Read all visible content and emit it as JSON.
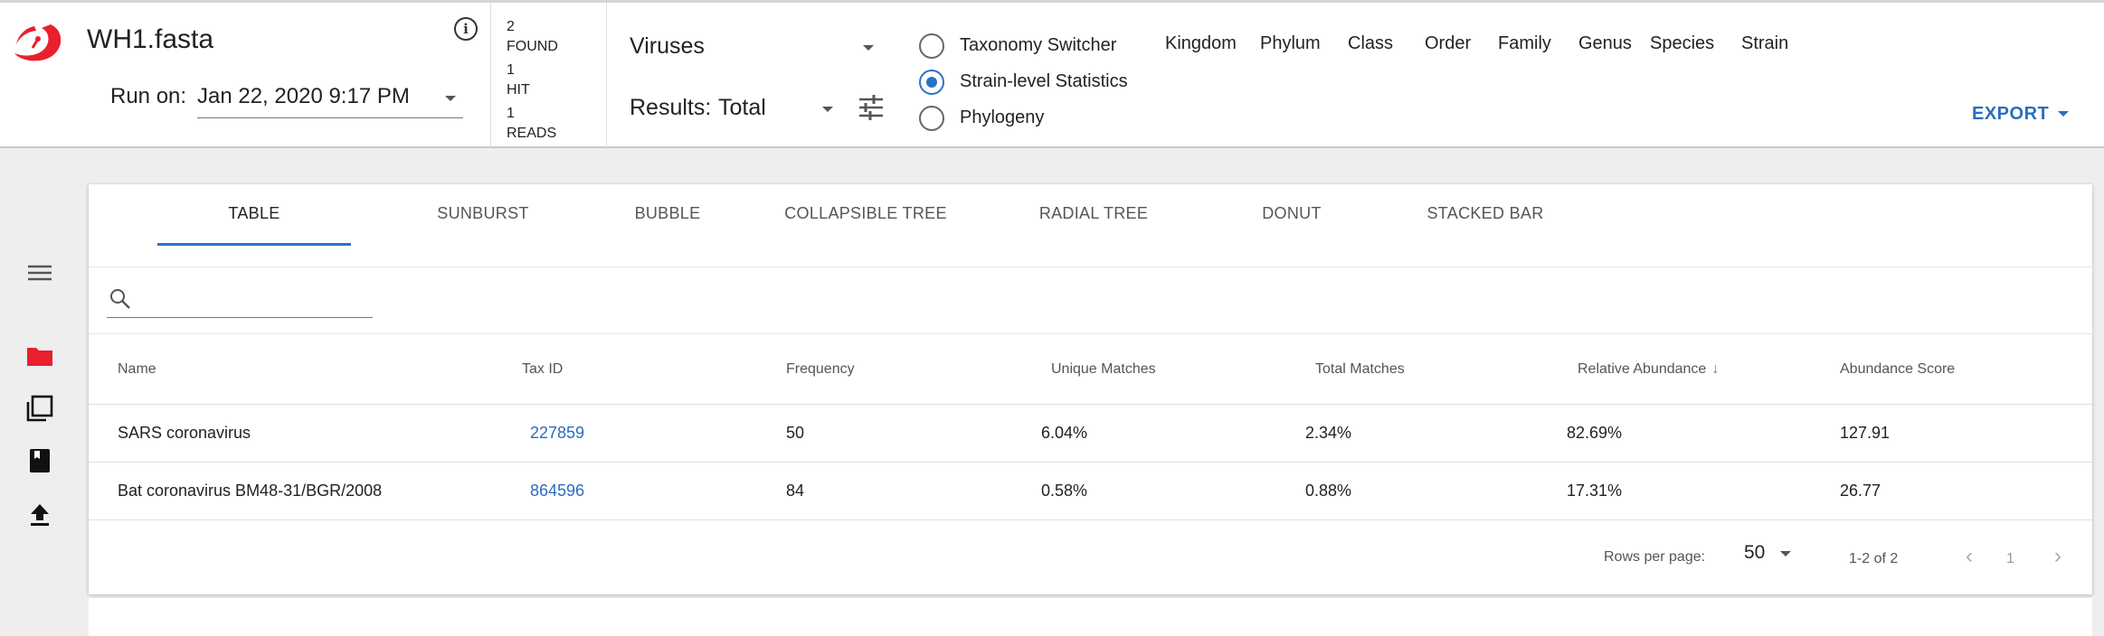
{
  "header": {
    "file_title": "WH1.fasta",
    "run_on_label": "Run on:",
    "run_on_value": "Jan 22, 2020 9:17 PM",
    "stats": [
      {
        "value": "2",
        "label": "FOUND"
      },
      {
        "value": "1",
        "label": "HIT"
      },
      {
        "value": "1",
        "label": "READS"
      }
    ],
    "organism_filter": "Viruses",
    "results_label": "Results:",
    "results_value": "Total",
    "view_options": [
      {
        "label": "Taxonomy Switcher",
        "selected": false
      },
      {
        "label": "Strain-level Statistics",
        "selected": true
      },
      {
        "label": "Phylogeny",
        "selected": false
      }
    ],
    "ranks": [
      "Kingdom",
      "Phylum",
      "Class",
      "Order",
      "Family",
      "Genus",
      "Species",
      "Strain"
    ],
    "export_label": "EXPORT"
  },
  "tabs": [
    "TABLE",
    "SUNBURST",
    "BUBBLE",
    "COLLAPSIBLE TREE",
    "RADIAL TREE",
    "DONUT",
    "STACKED BAR"
  ],
  "active_tab": "TABLE",
  "search": {
    "placeholder": "",
    "value": ""
  },
  "table": {
    "columns": [
      "Name",
      "Tax ID",
      "Frequency",
      "Unique Matches",
      "Total Matches",
      "Relative Abundance",
      "Abundance Score"
    ],
    "sorted_column": "Relative Abundance",
    "sort_direction": "descending",
    "rows": [
      [
        "SARS coronavirus",
        "227859",
        "50",
        "6.04%",
        "2.34%",
        "82.69%",
        "127.91"
      ],
      [
        "Bat coronavirus BM48-31/BGR/2008",
        "864596",
        "84",
        "0.58%",
        "0.88%",
        "17.31%",
        "26.77"
      ]
    ]
  },
  "pagination": {
    "rows_per_page_label": "Rows per page:",
    "rows_per_page": "50",
    "range": "1-2 of 2",
    "page": "1"
  },
  "colors": {
    "accent": "#2a72c7",
    "link": "#2a6cc0",
    "logo_red": "#e8202e",
    "folder_red": "#e8202e"
  },
  "icons": [
    "info-icon",
    "tune-icon",
    "menu-icon",
    "folder-icon",
    "copy-icon",
    "book-icon",
    "upload-icon",
    "search-icon"
  ]
}
